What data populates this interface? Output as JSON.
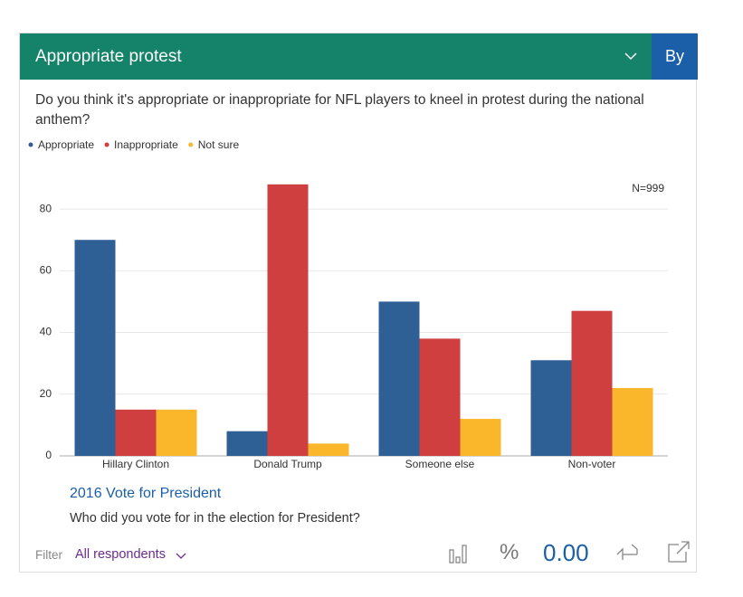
{
  "header": {
    "title": "Appropriate protest",
    "button": "By"
  },
  "chart_data": {
    "type": "bar",
    "subtitle": "Do you think it's appropriate or inappropriate for NFL players to kneel in protest during the national anthem?",
    "annotation": "N=999",
    "categories": [
      "Hillary Clinton",
      "Donald Trump",
      "Someone else",
      "Non-voter"
    ],
    "series": [
      {
        "name": "Appropriate",
        "color": "#2e6096",
        "values": [
          70,
          8,
          50,
          31
        ]
      },
      {
        "name": "Inappropriate",
        "color": "#d03f3f",
        "values": [
          15,
          88,
          38,
          47
        ]
      },
      {
        "name": "Not sure",
        "color": "#fbb72c",
        "values": [
          15,
          4,
          12,
          22
        ]
      }
    ],
    "ylim": [
      0,
      90
    ],
    "yticks": [
      0,
      20,
      40,
      60,
      80
    ],
    "grid": true,
    "x_label": "2016 Vote for President",
    "x_sublabel": "Who did you vote for in the election for President?"
  },
  "footer": {
    "filter_label": "Filter",
    "filter_value": "All respondents",
    "percent": "%",
    "decimals": "0.00"
  }
}
